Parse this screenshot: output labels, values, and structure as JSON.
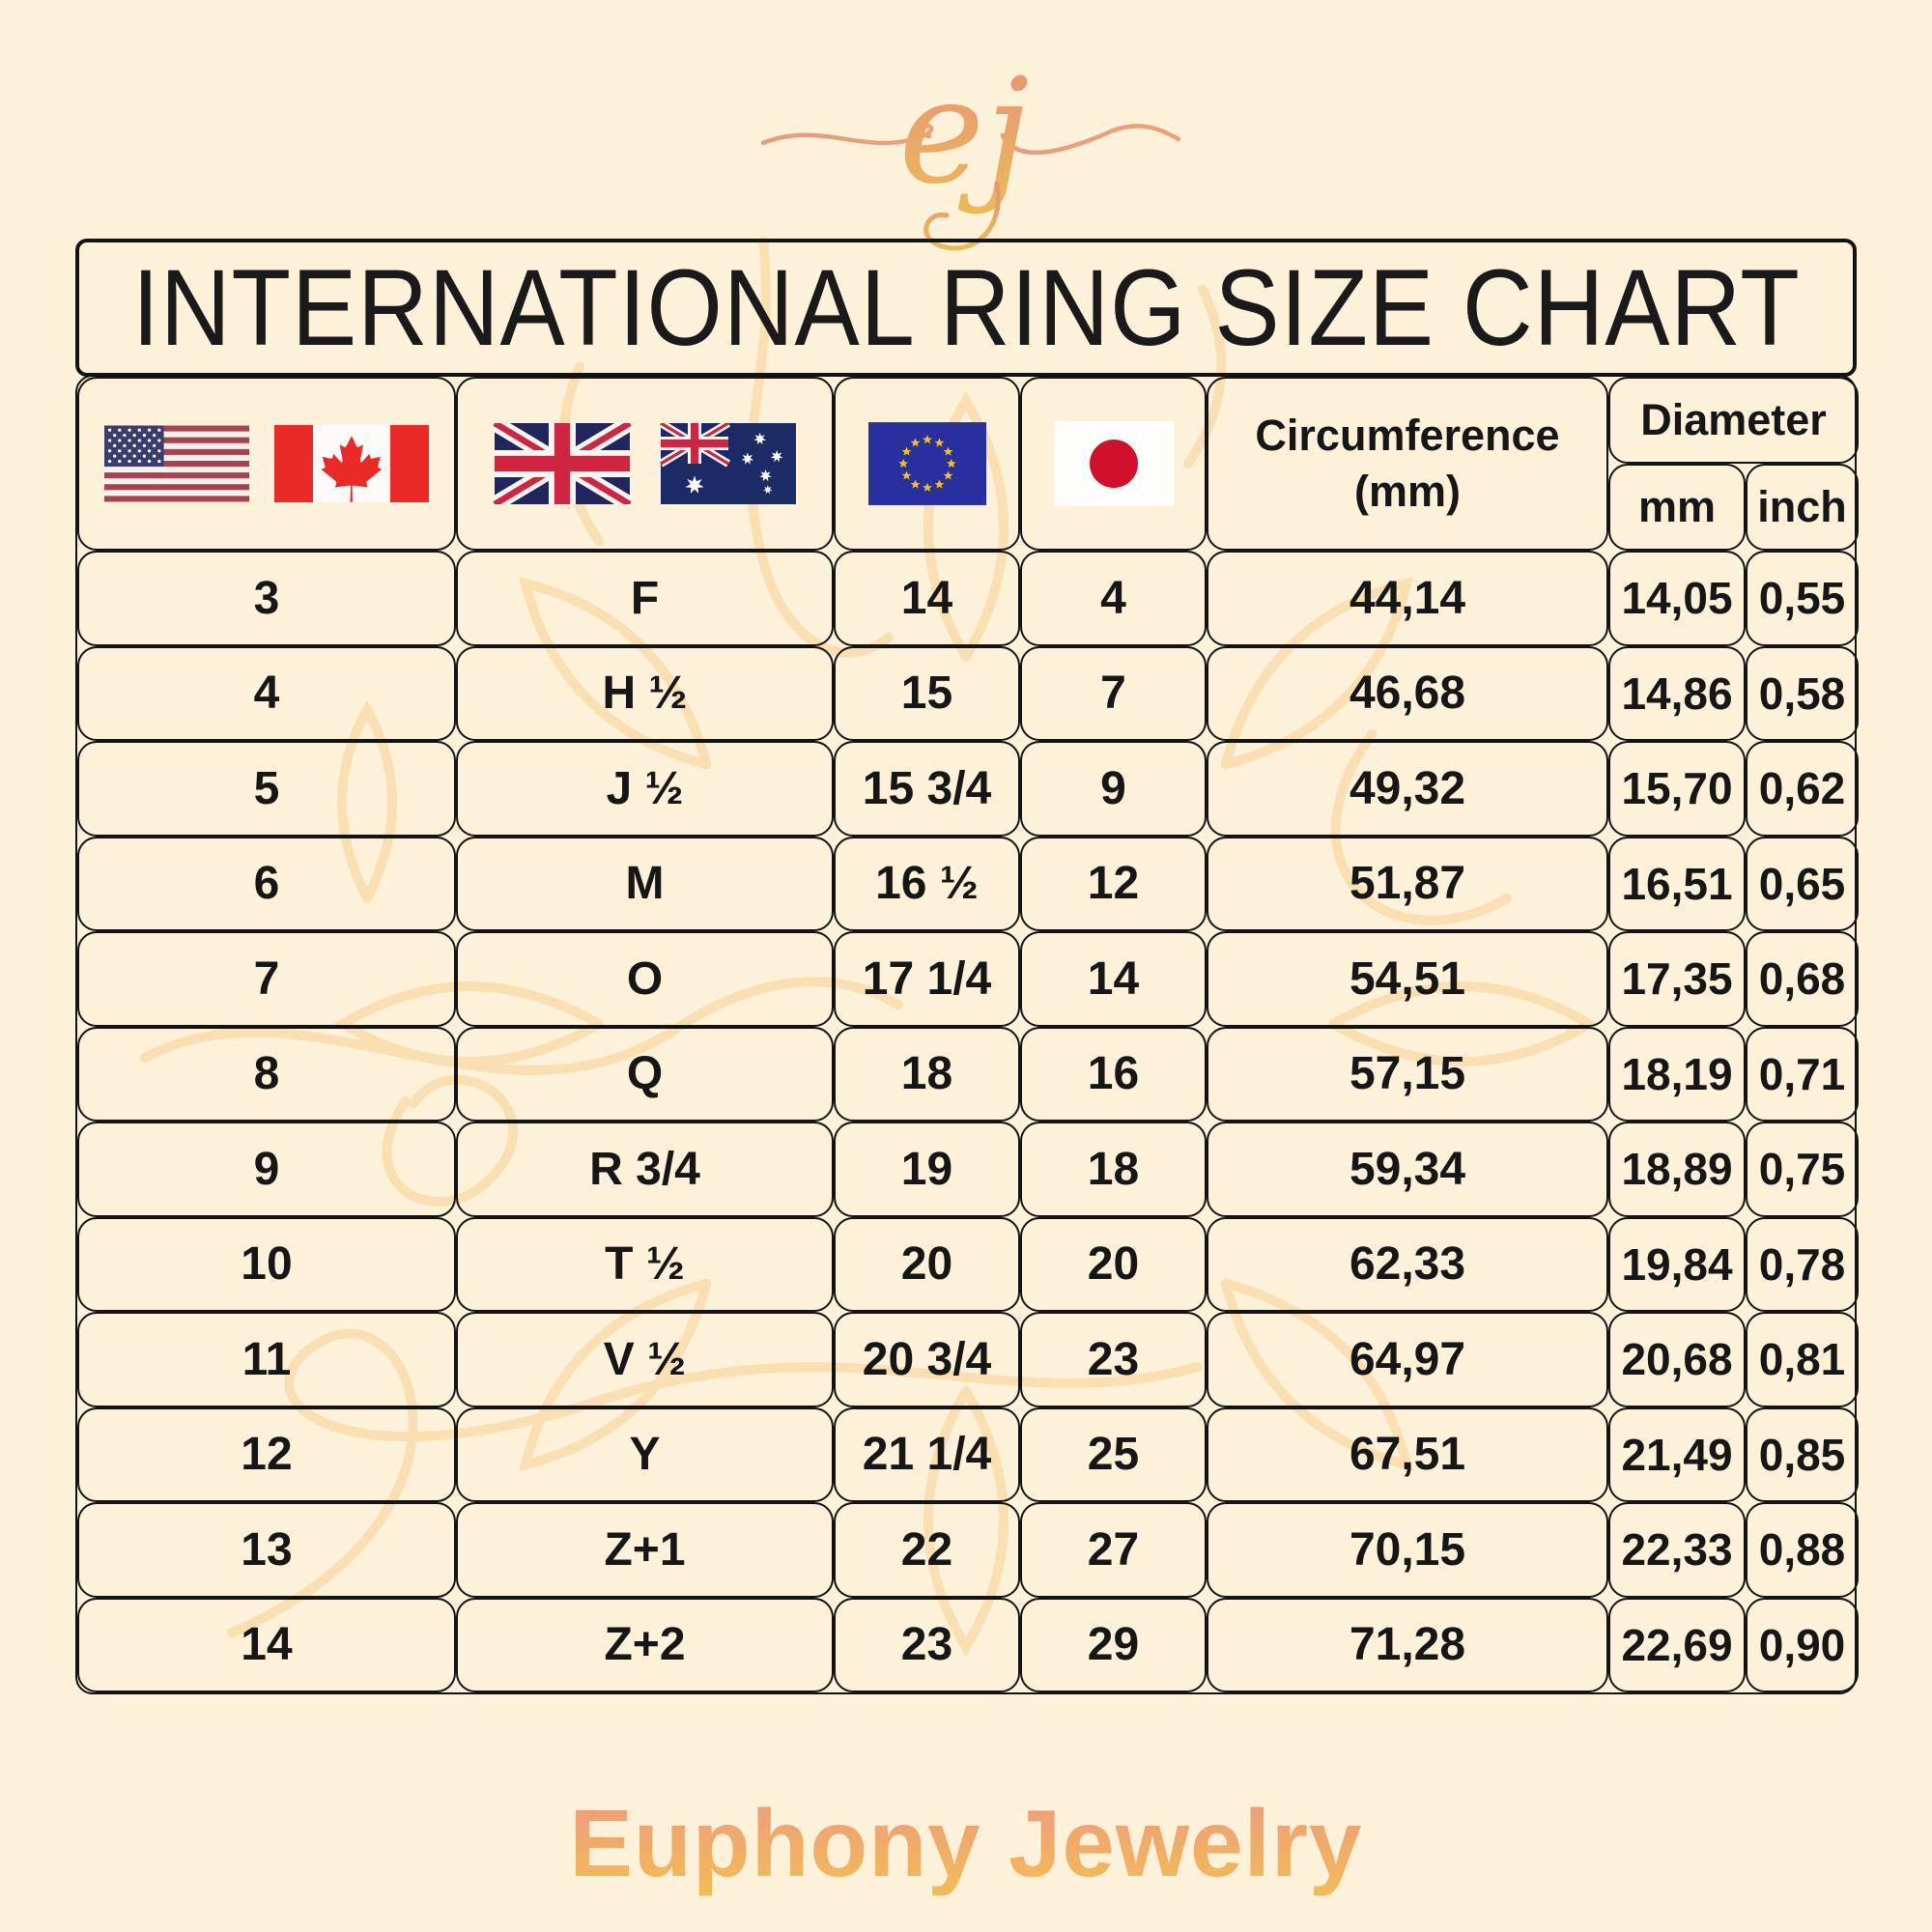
{
  "title": "INTERNATIONAL RING SIZE CHART",
  "logo": {
    "monogram": "ej"
  },
  "footer": {
    "brand": "Euphony Jewelry"
  },
  "table": {
    "header": {
      "us_ca_flags": [
        "us-flag",
        "canada-flag"
      ],
      "uk_au_flags": [
        "uk-flag",
        "australia-flag"
      ],
      "eu_flag": "eu-flag",
      "japan_flag": "japan-flag",
      "circumference_line1": "Circumference",
      "circumference_line2": "(mm)",
      "diameter": "Diameter",
      "diameter_mm": "mm",
      "diameter_inch": "inch"
    },
    "rows": [
      {
        "us": "3",
        "uk_au": "F",
        "eu": "14",
        "japan": "4",
        "circumference_mm": "44,14",
        "diameter_mm": "14,05",
        "diameter_inch": "0,55"
      },
      {
        "us": "4",
        "uk_au": "H ½",
        "eu": "15",
        "japan": "7",
        "circumference_mm": "46,68",
        "diameter_mm": "14,86",
        "diameter_inch": "0,58"
      },
      {
        "us": "5",
        "uk_au": "J ½",
        "eu": "15 3/4",
        "japan": "9",
        "circumference_mm": "49,32",
        "diameter_mm": "15,70",
        "diameter_inch": "0,62"
      },
      {
        "us": "6",
        "uk_au": "M",
        "eu": "16 ½",
        "japan": "12",
        "circumference_mm": "51,87",
        "diameter_mm": "16,51",
        "diameter_inch": "0,65"
      },
      {
        "us": "7",
        "uk_au": "O",
        "eu": "17 1/4",
        "japan": "14",
        "circumference_mm": "54,51",
        "diameter_mm": "17,35",
        "diameter_inch": "0,68"
      },
      {
        "us": "8",
        "uk_au": "Q",
        "eu": "18",
        "japan": "16",
        "circumference_mm": "57,15",
        "diameter_mm": "18,19",
        "diameter_inch": "0,71"
      },
      {
        "us": "9",
        "uk_au": "R 3/4",
        "eu": "19",
        "japan": "18",
        "circumference_mm": "59,34",
        "diameter_mm": "18,89",
        "diameter_inch": "0,75"
      },
      {
        "us": "10",
        "uk_au": "T ½",
        "eu": "20",
        "japan": "20",
        "circumference_mm": "62,33",
        "diameter_mm": "19,84",
        "diameter_inch": "0,78"
      },
      {
        "us": "11",
        "uk_au": "V ½",
        "eu": "20 3/4",
        "japan": "23",
        "circumference_mm": "64,97",
        "diameter_mm": "20,68",
        "diameter_inch": "0,81"
      },
      {
        "us": "12",
        "uk_au": "Y",
        "eu": "21 1/4",
        "japan": "25",
        "circumference_mm": "67,51",
        "diameter_mm": "21,49",
        "diameter_inch": "0,85"
      },
      {
        "us": "13",
        "uk_au": "Z+1",
        "eu": "22",
        "japan": "27",
        "circumference_mm": "70,15",
        "diameter_mm": "22,33",
        "diameter_inch": "0,88"
      },
      {
        "us": "14",
        "uk_au": "Z+2",
        "eu": "23",
        "japan": "29",
        "circumference_mm": "71,28",
        "diameter_mm": "22,69",
        "diameter_inch": "0,90"
      }
    ]
  },
  "chart_data": {
    "type": "table",
    "title": "INTERNATIONAL RING SIZE CHART",
    "columns": [
      "US/Canada",
      "UK/Australia",
      "EU",
      "Japan",
      "Circumference (mm)",
      "Diameter mm",
      "Diameter inch"
    ],
    "rows": [
      [
        "3",
        "F",
        "14",
        "4",
        "44,14",
        "14,05",
        "0,55"
      ],
      [
        "4",
        "H ½",
        "15",
        "7",
        "46,68",
        "14,86",
        "0,58"
      ],
      [
        "5",
        "J ½",
        "15 3/4",
        "9",
        "49,32",
        "15,70",
        "0,62"
      ],
      [
        "6",
        "M",
        "16 ½",
        "12",
        "51,87",
        "16,51",
        "0,65"
      ],
      [
        "7",
        "O",
        "17 1/4",
        "14",
        "54,51",
        "17,35",
        "0,68"
      ],
      [
        "8",
        "Q",
        "18",
        "16",
        "57,15",
        "18,19",
        "0,71"
      ],
      [
        "9",
        "R 3/4",
        "19",
        "18",
        "59,34",
        "18,89",
        "0,75"
      ],
      [
        "10",
        "T ½",
        "20",
        "20",
        "62,33",
        "19,84",
        "0,78"
      ],
      [
        "11",
        "V ½",
        "20 3/4",
        "23",
        "64,97",
        "20,68",
        "0,81"
      ],
      [
        "12",
        "Y",
        "21 1/4",
        "25",
        "67,51",
        "21,49",
        "0,85"
      ],
      [
        "13",
        "Z+1",
        "22",
        "27",
        "70,15",
        "22,33",
        "0,88"
      ],
      [
        "14",
        "Z+2",
        "23",
        "29",
        "71,28",
        "22,69",
        "0,90"
      ]
    ]
  },
  "colors": {
    "background": "#fdf2d9",
    "table_border": "#131313",
    "text": "#161616",
    "watermark": "#f8dcab",
    "logo_gradient": [
      "#e8917b",
      "#ecba57"
    ],
    "brand_gradient": [
      "#ef9c7a",
      "#f2bb58"
    ]
  }
}
